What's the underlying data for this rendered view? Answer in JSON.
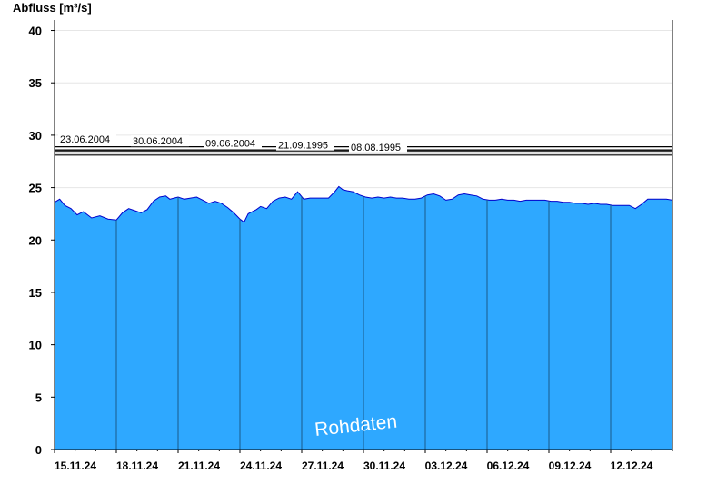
{
  "chart_data": {
    "type": "area",
    "ylabel": "Abfluss [m³/s]",
    "ylim": [
      0,
      41
    ],
    "yticks": [
      0,
      5,
      10,
      15,
      20,
      25,
      30,
      35,
      40
    ],
    "grid": "horizontal",
    "x_tick_labels": [
      "15.11.24",
      "18.11.24",
      "21.11.24",
      "24.11.24",
      "27.11.24",
      "30.11.24",
      "03.12.24",
      "06.12.24",
      "09.12.24",
      "12.12.24"
    ],
    "x_days_range": [
      15,
      45
    ],
    "series": [
      {
        "color": "#2ea8ff",
        "line_color": "#0000cc",
        "x": [
          15.0,
          15.25,
          15.5,
          15.8,
          16.1,
          16.4,
          16.8,
          17.2,
          17.6,
          18.0,
          18.3,
          18.6,
          18.9,
          19.2,
          19.5,
          19.8,
          20.1,
          20.4,
          20.6,
          20.8,
          21.0,
          21.3,
          21.6,
          21.9,
          22.2,
          22.5,
          22.8,
          23.1,
          23.4,
          23.7,
          24.0,
          24.2,
          24.4,
          24.6,
          24.8,
          25.0,
          25.3,
          25.6,
          25.9,
          26.2,
          26.5,
          26.8,
          27.1,
          27.4,
          27.7,
          28.0,
          28.3,
          28.6,
          28.8,
          29.0,
          29.2,
          29.5,
          29.8,
          30.1,
          30.4,
          30.7,
          31.0,
          31.3,
          31.6,
          31.9,
          32.2,
          32.5,
          32.8,
          33.1,
          33.4,
          33.7,
          34.0,
          34.3,
          34.6,
          34.9,
          35.2,
          35.5,
          35.8,
          36.1,
          36.4,
          36.7,
          37.0,
          37.3,
          37.6,
          37.9,
          38.2,
          38.5,
          38.8,
          39.1,
          39.4,
          39.7,
          40.0,
          40.3,
          40.6,
          40.9,
          41.2,
          41.5,
          41.8,
          42.1,
          42.3,
          42.6,
          42.9,
          43.2,
          43.5,
          43.8,
          44.1,
          44.4,
          44.7,
          45.0
        ],
        "values": [
          23.6,
          23.9,
          23.3,
          23.0,
          22.4,
          22.7,
          22.1,
          22.3,
          22.0,
          21.9,
          22.6,
          23.0,
          22.8,
          22.6,
          22.9,
          23.7,
          24.1,
          24.2,
          23.9,
          24.0,
          24.1,
          23.9,
          24.0,
          24.1,
          23.8,
          23.5,
          23.7,
          23.5,
          23.1,
          22.6,
          22.0,
          21.7,
          22.5,
          22.7,
          22.9,
          23.2,
          23.0,
          23.7,
          24.0,
          24.1,
          23.9,
          24.6,
          23.9,
          24.0,
          24.0,
          24.0,
          24.0,
          24.6,
          25.1,
          24.8,
          24.7,
          24.6,
          24.3,
          24.1,
          24.0,
          24.1,
          24.0,
          24.1,
          24.0,
          24.0,
          23.9,
          23.9,
          24.0,
          24.3,
          24.4,
          24.2,
          23.8,
          23.9,
          24.3,
          24.4,
          24.3,
          24.2,
          23.9,
          23.8,
          23.8,
          23.9,
          23.8,
          23.8,
          23.7,
          23.8,
          23.8,
          23.8,
          23.8,
          23.7,
          23.7,
          23.6,
          23.6,
          23.5,
          23.5,
          23.4,
          23.5,
          23.4,
          23.4,
          23.3,
          23.3,
          23.3,
          23.3,
          23.0,
          23.4,
          23.9,
          23.9,
          23.9,
          23.9,
          23.8
        ]
      }
    ],
    "reference_lines": [
      {
        "label": "23.06.2004",
        "value": 28.9
      },
      {
        "label": "30.06.2004",
        "value": 28.6
      },
      {
        "label": "09.06.2004",
        "value": 28.5
      },
      {
        "label": "21.09.1995",
        "value": 28.3
      },
      {
        "label": "08.08.1995",
        "value": 28.1
      }
    ],
    "watermark": "Rohdaten"
  }
}
